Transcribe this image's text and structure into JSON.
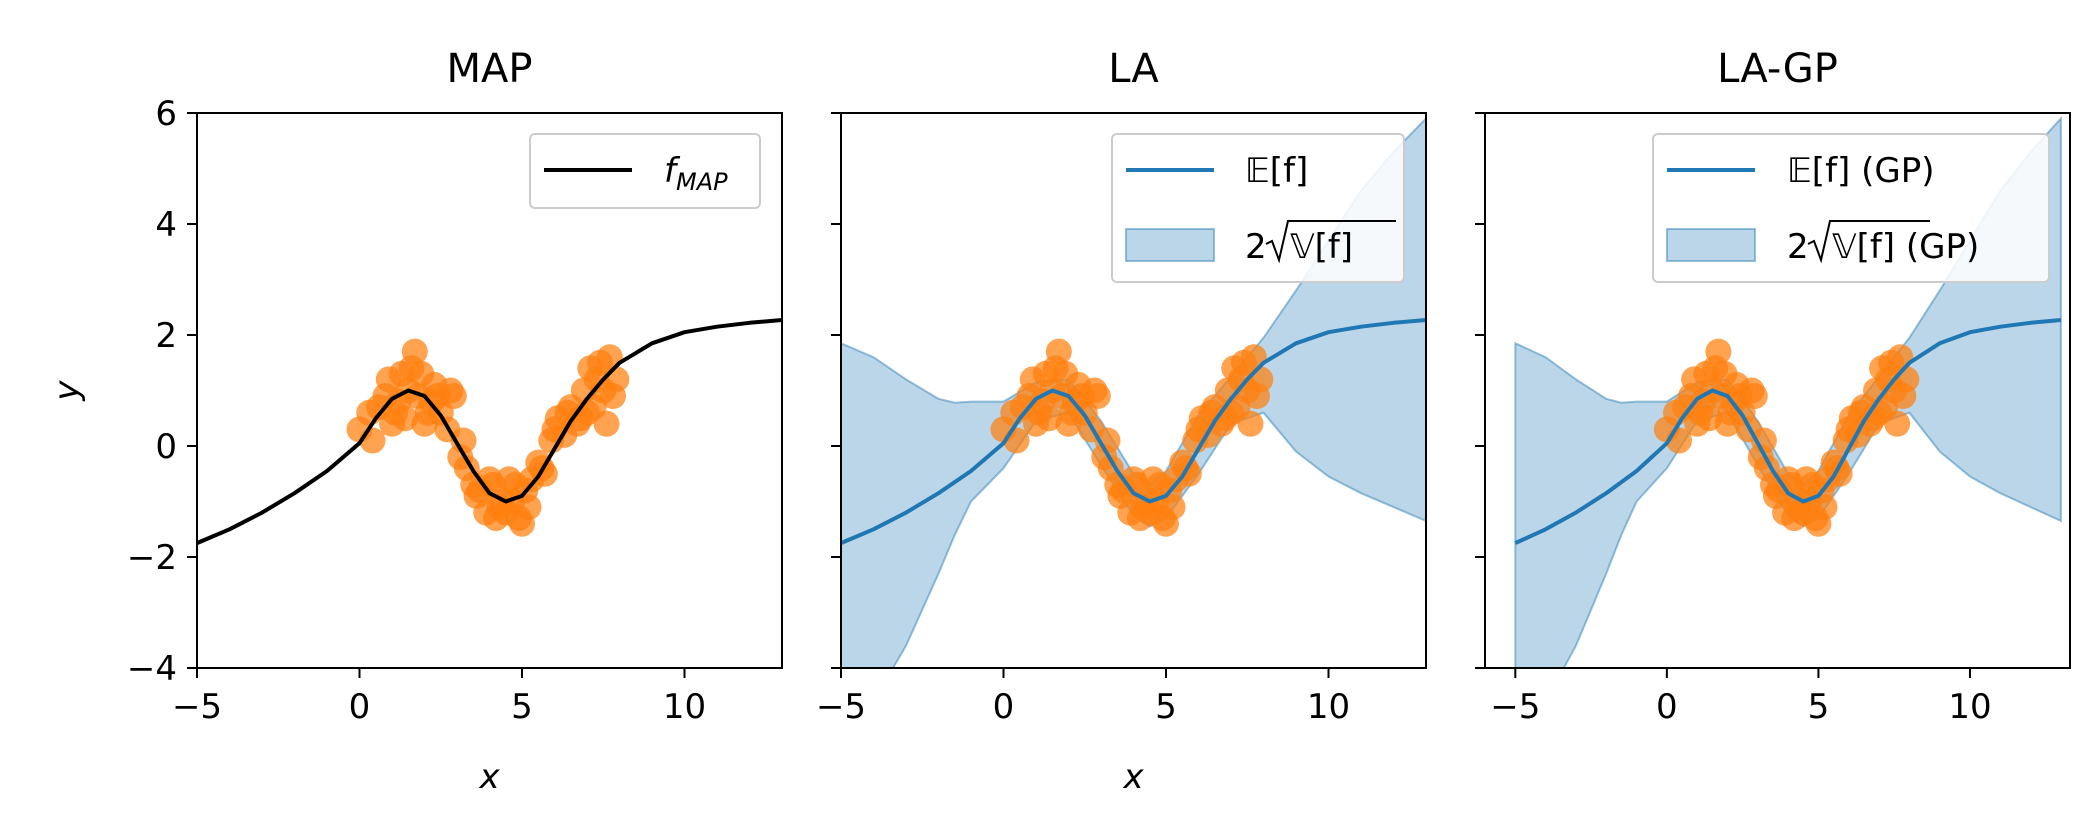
{
  "chart_data": [
    {
      "type": "line",
      "title": "MAP",
      "xlabel": "x",
      "ylabel": "y",
      "xlim": [
        -5,
        13
      ],
      "ylim": [
        -4,
        6
      ],
      "xticks": [
        -5,
        0,
        5,
        10
      ],
      "yticks": [
        -4,
        -2,
        0,
        2,
        4,
        6
      ],
      "xtick_labels": [
        "−5",
        "0",
        "5",
        "10"
      ],
      "ytick_labels": [
        "−4",
        "−2",
        "0",
        "2",
        "4",
        "6"
      ],
      "legend_position": "top-right",
      "series": [
        {
          "name": "f_MAP",
          "color": "#000000",
          "x": [
            -5,
            -4,
            -3,
            -2,
            -1,
            0,
            0.5,
            1,
            1.5,
            2,
            2.5,
            3,
            3.5,
            4,
            4.5,
            5,
            5.5,
            6,
            6.5,
            7,
            7.5,
            8,
            9,
            10,
            11,
            12,
            13
          ],
          "y": [
            -1.75,
            -1.5,
            -1.2,
            -0.85,
            -0.45,
            0.05,
            0.5,
            0.85,
            1.0,
            0.9,
            0.55,
            0.05,
            -0.45,
            -0.85,
            -1.0,
            -0.9,
            -0.55,
            -0.05,
            0.45,
            0.85,
            1.2,
            1.5,
            1.85,
            2.05,
            2.15,
            2.22,
            2.27
          ]
        }
      ]
    },
    {
      "type": "line",
      "title": "LA",
      "xlabel": "x",
      "ylabel": "",
      "xlim": [
        -5,
        13
      ],
      "ylim": [
        -4,
        6
      ],
      "xticks": [
        -5,
        0,
        5,
        10
      ],
      "yticks": [
        -4,
        -2,
        0,
        2,
        4,
        6
      ],
      "xtick_labels": [
        "−5",
        "0",
        "5",
        "10"
      ],
      "ytick_labels": [],
      "legend_position": "top-right",
      "series": [
        {
          "name": "E[f]",
          "color": "#1f77b4",
          "x": [
            -5,
            -4,
            -3,
            -2,
            -1,
            0,
            0.5,
            1,
            1.5,
            2,
            2.5,
            3,
            3.5,
            4,
            4.5,
            5,
            5.5,
            6,
            6.5,
            7,
            7.5,
            8,
            9,
            10,
            11,
            12,
            13
          ],
          "y": [
            -1.75,
            -1.5,
            -1.2,
            -0.85,
            -0.45,
            0.05,
            0.5,
            0.85,
            1.0,
            0.9,
            0.55,
            0.05,
            -0.45,
            -0.85,
            -1.0,
            -0.9,
            -0.55,
            -0.05,
            0.45,
            0.85,
            1.2,
            1.5,
            1.85,
            2.05,
            2.15,
            2.22,
            2.27
          ]
        }
      ],
      "band": {
        "name": "2√V[f]",
        "color": "#1f77b4",
        "opacity": 0.3,
        "x": [
          -5,
          -4,
          -3,
          -2,
          -1.5,
          -1,
          0,
          1,
          2,
          3,
          4,
          4.5,
          5,
          6,
          7,
          8,
          9,
          10,
          11,
          12,
          13
        ],
        "upper": [
          1.85,
          1.6,
          1.2,
          0.85,
          0.78,
          0.8,
          0.8,
          1.15,
          1.2,
          0.45,
          -0.5,
          -0.7,
          -0.45,
          0.55,
          1.25,
          1.95,
          2.8,
          3.7,
          4.6,
          5.3,
          5.9
        ],
        "lower": [
          -5.0,
          -4.6,
          -3.6,
          -2.3,
          -1.6,
          -1.0,
          -0.4,
          0.45,
          0.6,
          -0.35,
          -1.25,
          -1.45,
          -1.3,
          -0.5,
          0.4,
          0.6,
          -0.1,
          -0.55,
          -0.85,
          -1.1,
          -1.35
        ]
      },
      "scatter_color": "#ff7f0e"
    },
    {
      "type": "line",
      "title": "LA-GP",
      "xlabel": "",
      "ylabel": "",
      "xlim": [
        -6,
        13.3
      ],
      "ylim": [
        -4,
        6
      ],
      "xticks": [
        -5,
        0,
        5,
        10
      ],
      "yticks": [
        -4,
        -2,
        0,
        2,
        4,
        6
      ],
      "xtick_labels": [
        "−5",
        "0",
        "5",
        "10"
      ],
      "ytick_labels": [],
      "legend_position": "top-right",
      "series": [
        {
          "name": "E[f] (GP)",
          "color": "#1f77b4",
          "x": [
            -5,
            -4,
            -3,
            -2,
            -1,
            0,
            0.5,
            1,
            1.5,
            2,
            2.5,
            3,
            3.5,
            4,
            4.5,
            5,
            5.5,
            6,
            6.5,
            7,
            7.5,
            8,
            9,
            10,
            11,
            12,
            13
          ],
          "y": [
            -1.75,
            -1.5,
            -1.2,
            -0.85,
            -0.45,
            0.05,
            0.5,
            0.85,
            1.0,
            0.9,
            0.55,
            0.05,
            -0.45,
            -0.85,
            -1.0,
            -0.9,
            -0.55,
            -0.05,
            0.45,
            0.85,
            1.2,
            1.5,
            1.85,
            2.05,
            2.15,
            2.22,
            2.27
          ]
        }
      ],
      "band": {
        "name": "2√V[f] (GP)",
        "color": "#1f77b4",
        "opacity": 0.3,
        "x": [
          -5,
          -4,
          -3,
          -2,
          -1.5,
          -1,
          0,
          1,
          2,
          3,
          4,
          4.5,
          5,
          6,
          7,
          8,
          9,
          10,
          11,
          12,
          13
        ],
        "upper": [
          1.85,
          1.6,
          1.2,
          0.85,
          0.78,
          0.8,
          0.8,
          1.15,
          1.2,
          0.45,
          -0.5,
          -0.7,
          -0.45,
          0.55,
          1.25,
          1.95,
          2.8,
          3.7,
          4.6,
          5.3,
          5.9
        ],
        "lower": [
          -5.0,
          -4.6,
          -3.6,
          -2.3,
          -1.6,
          -1.0,
          -0.4,
          0.45,
          0.6,
          -0.35,
          -1.25,
          -1.45,
          -1.3,
          -0.5,
          0.4,
          0.6,
          -0.1,
          -0.55,
          -0.85,
          -1.1,
          -1.35
        ]
      },
      "scatter_color": "#ff7f0e"
    }
  ],
  "scatter_points": {
    "color": "#ff7f0e",
    "x": [
      0.0,
      0.3,
      0.6,
      0.9,
      1.1,
      1.3,
      1.5,
      1.7,
      1.9,
      2.1,
      2.3,
      2.5,
      2.7,
      2.9,
      3.1,
      3.3,
      3.5,
      3.7,
      3.9,
      4.1,
      4.3,
      4.5,
      4.7,
      4.9,
      5.1,
      5.3,
      5.5,
      5.7,
      5.9,
      6.1,
      6.3,
      6.5,
      6.7,
      6.9,
      7.1,
      7.3,
      7.5,
      7.7,
      7.9,
      0.4,
      0.8,
      1.2,
      1.6,
      2.0,
      2.4,
      2.8,
      3.2,
      3.6,
      4.0,
      4.4,
      4.8,
      5.2,
      5.6,
      6.0,
      6.4,
      6.8,
      7.2,
      7.6,
      1.0,
      1.4,
      1.8,
      2.2,
      4.2,
      4.6,
      5.0,
      7.0,
      7.4,
      7.8
    ],
    "y": [
      0.3,
      0.6,
      0.7,
      1.2,
      0.6,
      1.3,
      1.0,
      1.7,
      1.3,
      0.6,
      1.1,
      0.6,
      0.3,
      0.9,
      -0.2,
      -0.4,
      -0.7,
      -0.8,
      -1.2,
      -0.7,
      -1.1,
      -1.2,
      -1.0,
      -1.3,
      -0.8,
      -0.6,
      -0.3,
      -0.5,
      0.1,
      0.5,
      0.2,
      0.7,
      0.4,
      1.0,
      1.4,
      1.2,
      1.0,
      1.6,
      1.2,
      0.1,
      0.9,
      0.8,
      1.4,
      0.4,
      0.9,
      1.0,
      0.1,
      -0.9,
      -0.6,
      -1.0,
      -0.7,
      -1.1,
      -0.4,
      0.3,
      0.6,
      0.5,
      0.7,
      0.4,
      0.4,
      0.5,
      0.9,
      0.8,
      -1.3,
      -0.6,
      -1.4,
      0.6,
      1.5,
      0.9
    ]
  },
  "legends": {
    "p1": [
      "f",
      "MAP"
    ],
    "p2_line": [
      "𝔼[f]"
    ],
    "p2_band": [
      "2",
      "𝕍[f]"
    ],
    "p3_line": [
      "𝔼[f] (GP)"
    ],
    "p3_band": [
      "2",
      "𝕍[f] (GP)"
    ]
  }
}
